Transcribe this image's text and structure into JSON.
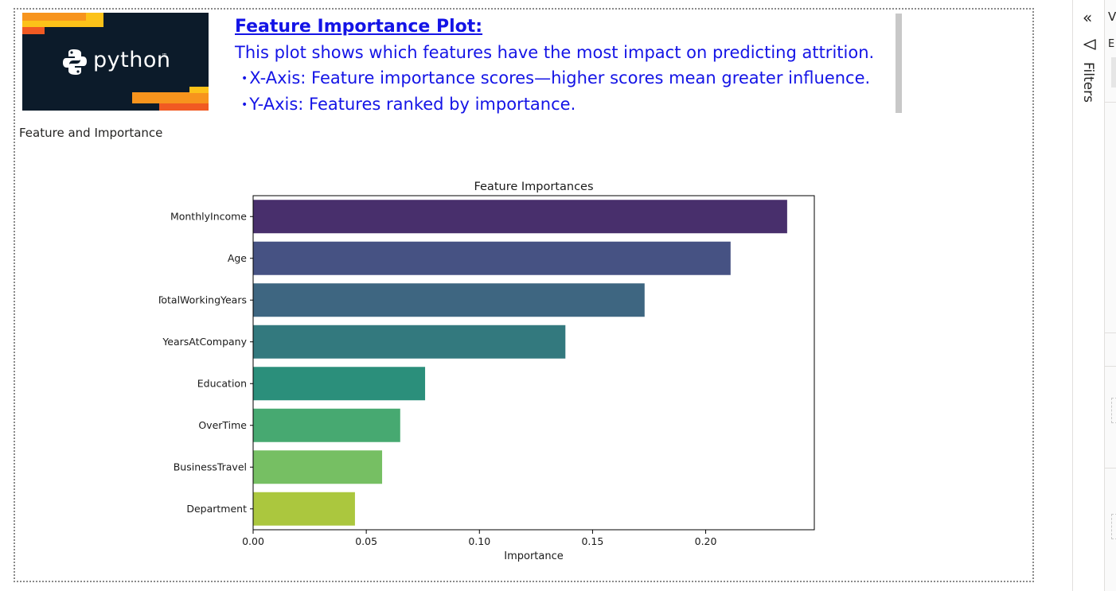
{
  "textbox": {
    "title": "Feature Importance Plot:",
    "line1": "This plot shows which features have the most impact on predicting attrition.",
    "bullets": [
      "X-Axis: Feature importance scores—higher scores mean greater influence.",
      "Y-Axis: Features ranked by importance."
    ],
    "bullet_glyph": "•"
  },
  "logo": {
    "text": "python",
    "tm": "™",
    "icon": "python-logo-icon"
  },
  "visual": {
    "title": "Feature and Importance"
  },
  "pane": {
    "collapse_glyph": "«",
    "filter_icon": "filter-icon",
    "filters_label": "Filters",
    "viz_letter": "V",
    "viz_letter2": "E"
  },
  "colors": {
    "text_blue": "#1414e6",
    "logo_bg": "#0c1b2a",
    "orange": "#f7941d",
    "orange_dark": "#f15a22",
    "yellow": "#fcc219",
    "bars": [
      "#482f6c",
      "#465283",
      "#3e6681",
      "#33797e",
      "#2b8f7b",
      "#47a971",
      "#76bf63",
      "#abc73e"
    ]
  },
  "chart_data": {
    "type": "bar",
    "orientation": "horizontal",
    "title": "Feature Importances",
    "xlabel": "Importance",
    "ylabel": "",
    "categories": [
      "MonthlyIncome",
      "Age",
      "TotalWorkingYears",
      "YearsAtCompany",
      "Education",
      "OverTime",
      "BusinessTravel",
      "Department"
    ],
    "values": [
      0.236,
      0.211,
      0.173,
      0.138,
      0.076,
      0.065,
      0.057,
      0.045
    ],
    "xlim": [
      0,
      0.248
    ],
    "xticks": [
      0.0,
      0.05,
      0.1,
      0.15,
      0.2
    ],
    "xtick_labels": [
      "0.00",
      "0.05",
      "0.10",
      "0.15",
      "0.20"
    ],
    "grid": false,
    "legend": "none"
  }
}
